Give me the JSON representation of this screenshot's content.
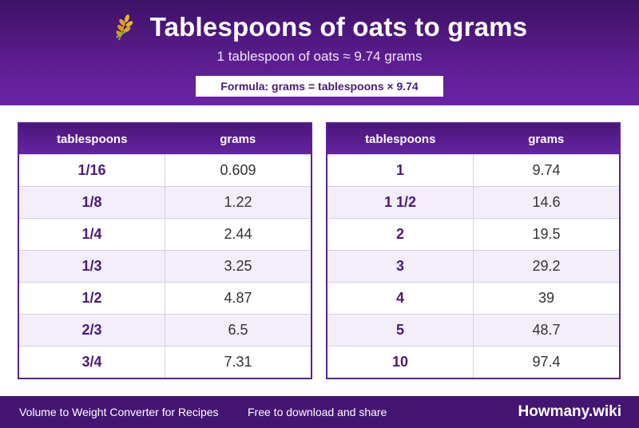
{
  "header": {
    "title": "Tablespoons of oats to grams",
    "subtitle": "1 tablespoon of oats ≈ 9.74 grams",
    "formula": "Formula: grams = tablespoons × 9.74",
    "icon": "oat-grain-icon"
  },
  "tables": {
    "left": {
      "col_tbsp": "tablespoons",
      "col_grams": "grams",
      "rows": [
        {
          "tbsp": "1/16",
          "grams": "0.609"
        },
        {
          "tbsp": "1/8",
          "grams": "1.22"
        },
        {
          "tbsp": "1/4",
          "grams": "2.44"
        },
        {
          "tbsp": "1/3",
          "grams": "3.25"
        },
        {
          "tbsp": "1/2",
          "grams": "4.87"
        },
        {
          "tbsp": "2/3",
          "grams": "6.5"
        },
        {
          "tbsp": "3/4",
          "grams": "7.31"
        }
      ]
    },
    "right": {
      "col_tbsp": "tablespoons",
      "col_grams": "grams",
      "rows": [
        {
          "tbsp": "1",
          "grams": "9.74"
        },
        {
          "tbsp": "1 1/2",
          "grams": "14.6"
        },
        {
          "tbsp": "2",
          "grams": "19.5"
        },
        {
          "tbsp": "3",
          "grams": "29.2"
        },
        {
          "tbsp": "4",
          "grams": "39"
        },
        {
          "tbsp": "5",
          "grams": "48.7"
        },
        {
          "tbsp": "10",
          "grams": "97.4"
        }
      ]
    }
  },
  "footer": {
    "tagline": "Volume to Weight Converter for Recipes",
    "note": "Free to download and share",
    "brand": "Howmany.wiki"
  },
  "colors": {
    "brand_purple": "#5a1d8e",
    "dark_purple": "#441672",
    "row_alt": "#f3eef9",
    "icon_gold": "#e0a21c"
  }
}
